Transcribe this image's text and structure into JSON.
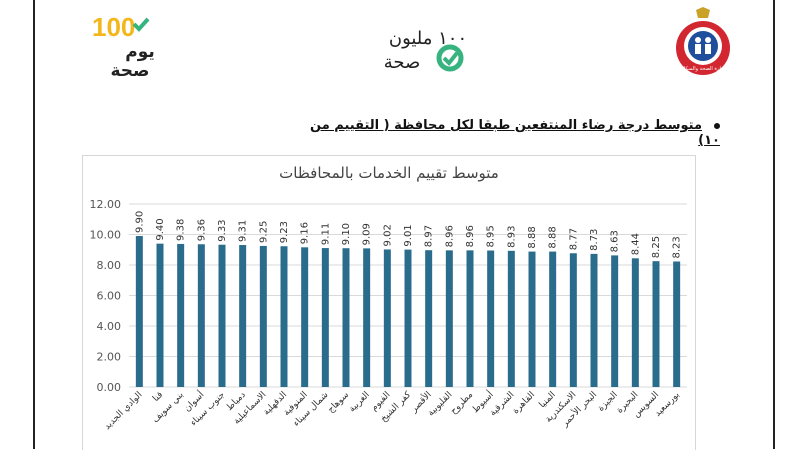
{
  "header": {
    "logo_100": {
      "top": "100",
      "line1": "يوم",
      "line2": "صحة"
    },
    "logo_million": {
      "line1": "١٠٠ مليون",
      "line2": "صحة"
    },
    "ministry_logo_text": "وزارة الصحة والسكان"
  },
  "bullet": {
    "text": "متوسط درجة رضاء المنتفعين طبقا لكل محافظة ( التقييم من ١٠)"
  },
  "colors": {
    "bar": "#2a6c8c",
    "grid": "#d9d9d9",
    "accent_green": "#36b37e",
    "brand_yellow": "#f3b71b",
    "ministry_red": "#d22630",
    "ministry_blue": "#1f4e9c"
  },
  "chart_data": {
    "type": "bar",
    "title": "متوسط تقييم الخدمات بالمحافظات",
    "categories": [
      "الوادي الجديد",
      "قنا",
      "بني سويف",
      "أسوان",
      "جنوب سيناء",
      "دمياط",
      "الاسماعيلية",
      "الدقهلية",
      "المنوفية",
      "شمال سيناء",
      "سوهاج",
      "الغربية",
      "الفيوم",
      "كفر الشيخ",
      "الأقصر",
      "القليوبية",
      "مطروح",
      "أسيوط",
      "الشرقية",
      "القاهرة",
      "المنيا",
      "الاسكندرية",
      "البحر الأحمر",
      "الجيزة",
      "البحيرة",
      "السويس",
      "بورسعيد"
    ],
    "values": [
      9.9,
      9.4,
      9.38,
      9.36,
      9.33,
      9.31,
      9.25,
      9.23,
      9.16,
      9.11,
      9.1,
      9.09,
      9.02,
      9.01,
      8.97,
      8.96,
      8.96,
      8.95,
      8.93,
      8.88,
      8.88,
      8.77,
      8.73,
      8.63,
      8.44,
      8.25,
      8.23
    ],
    "value_labels": [
      "9.90",
      "9.40",
      "9.38",
      "9.36",
      "9.33",
      "9.31",
      "9.25",
      "9.23",
      "9.16",
      "9.11",
      "9.10",
      "9.09",
      "9.02",
      "9.01",
      "8.97",
      "8.96",
      "8.96",
      "8.95",
      "8.93",
      "8.88",
      "8.88",
      "8.77",
      "8.73",
      "8.63",
      "8.44",
      "8.25",
      "8.23"
    ],
    "yticks": [
      "0.00",
      "2.00",
      "4.00",
      "6.00",
      "8.00",
      "10.00",
      "12.00"
    ],
    "ylim": [
      0,
      12
    ],
    "grid": true,
    "legend": "none"
  }
}
